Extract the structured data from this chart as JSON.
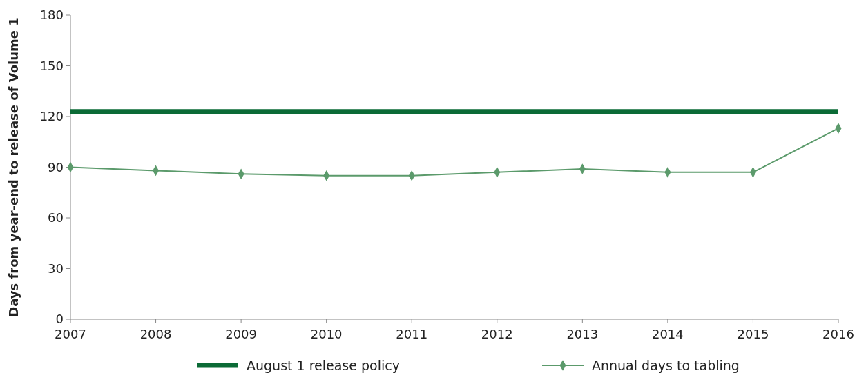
{
  "chart_data": {
    "type": "line",
    "ylabel": "Days from year-end to release of Volume 1",
    "x": [
      2007,
      2008,
      2009,
      2010,
      2011,
      2012,
      2013,
      2014,
      2015,
      2016
    ],
    "xlim": [
      2007,
      2016
    ],
    "xticks": [
      2007,
      2008,
      2009,
      2010,
      2011,
      2012,
      2013,
      2014,
      2015,
      2016
    ],
    "ylim": [
      0,
      180
    ],
    "yticks": [
      0,
      30,
      60,
      90,
      120,
      150,
      180
    ],
    "series": [
      {
        "name": "August 1 release policy",
        "color": "#0b6b36",
        "marker": "none",
        "values": [
          123,
          123,
          123,
          123,
          123,
          123,
          123,
          123,
          123,
          123
        ]
      },
      {
        "name": "Annual days to tabling",
        "color": "#5b9a6b",
        "marker": "diamond",
        "values": [
          90,
          88,
          86,
          85,
          85,
          87,
          89,
          87,
          87,
          113
        ]
      }
    ],
    "grid": false,
    "legend": "bottom"
  }
}
